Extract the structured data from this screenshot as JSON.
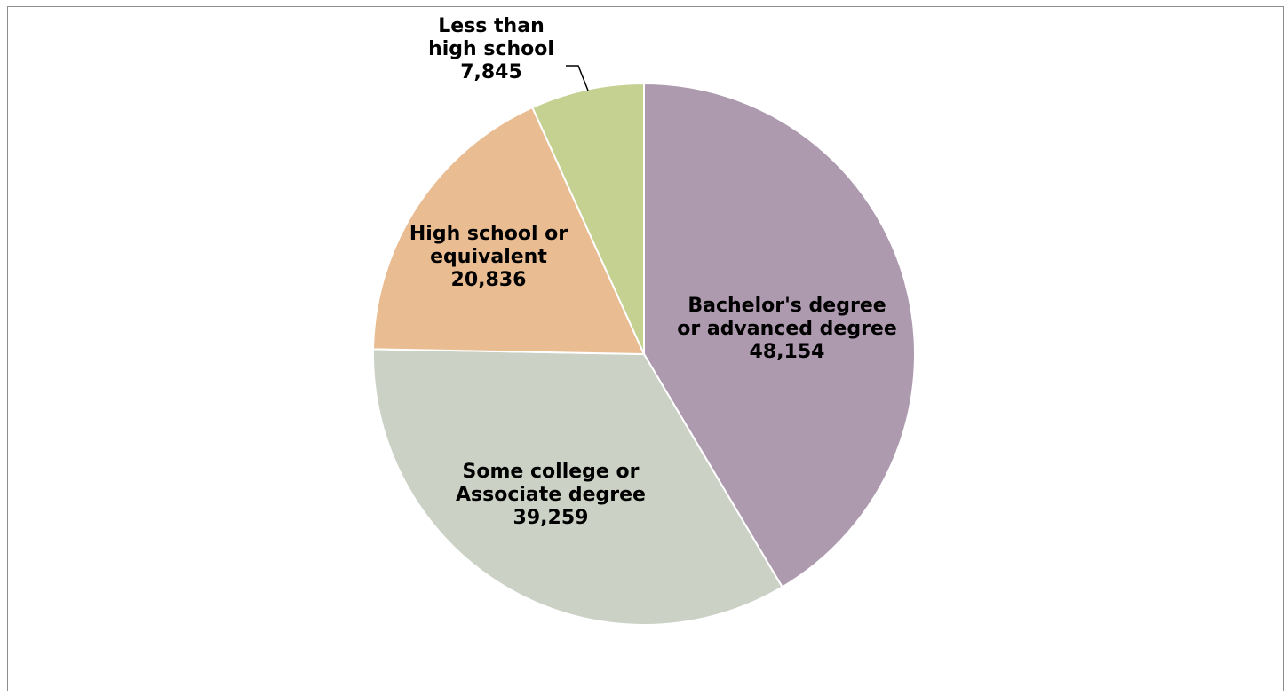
{
  "chart_data": {
    "type": "pie",
    "title": "",
    "slices": [
      {
        "label_lines": [
          "Bachelor's degree",
          "or advanced degree"
        ],
        "value": 48154,
        "value_label": "48,154",
        "color": "#ae9aaf"
      },
      {
        "label_lines": [
          "Some college or",
          "Associate degree"
        ],
        "value": 39259,
        "value_label": "39,259",
        "color": "#cbd1c5"
      },
      {
        "label_lines": [
          "High school or",
          "equivalent"
        ],
        "value": 20836,
        "value_label": "20,836",
        "color": "#e9bc92"
      },
      {
        "label_lines": [
          "Less than",
          "high school"
        ],
        "value": 7845,
        "value_label": "7,845",
        "color": "#c5d191"
      }
    ],
    "start_direction": "top",
    "rotation": "clockwise",
    "legend": "none"
  }
}
